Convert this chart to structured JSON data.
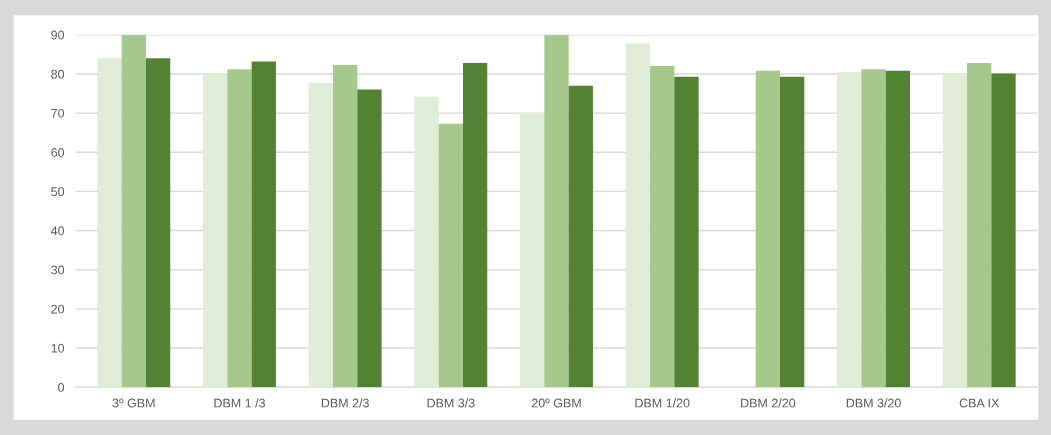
{
  "chart_data": {
    "type": "bar",
    "categories": [
      "3º GBM",
      "DBM 1 /3",
      "DBM 2/3",
      "DBM 3/3",
      "20º GBM",
      "DBM 1/20",
      "DBM 2/20",
      "DBM 3/20",
      "CBA IX"
    ],
    "series": [
      {
        "color": "#e0ecd6",
        "values": [
          84,
          80,
          77.7,
          74.2,
          70,
          87.8,
          null,
          80.5,
          80
        ]
      },
      {
        "color": "#a5c98c",
        "values": [
          90,
          81.2,
          82.3,
          67.3,
          90,
          82,
          80.8,
          81.2,
          82.8
        ]
      },
      {
        "color": "#548235",
        "values": [
          84,
          83.2,
          76,
          82.8,
          77,
          79.3,
          79.3,
          80.8,
          80.1
        ]
      }
    ],
    "ylim": [
      0,
      90
    ],
    "yticks": [
      0,
      10,
      20,
      30,
      40,
      50,
      60,
      70,
      80,
      90
    ],
    "grid": "y"
  }
}
